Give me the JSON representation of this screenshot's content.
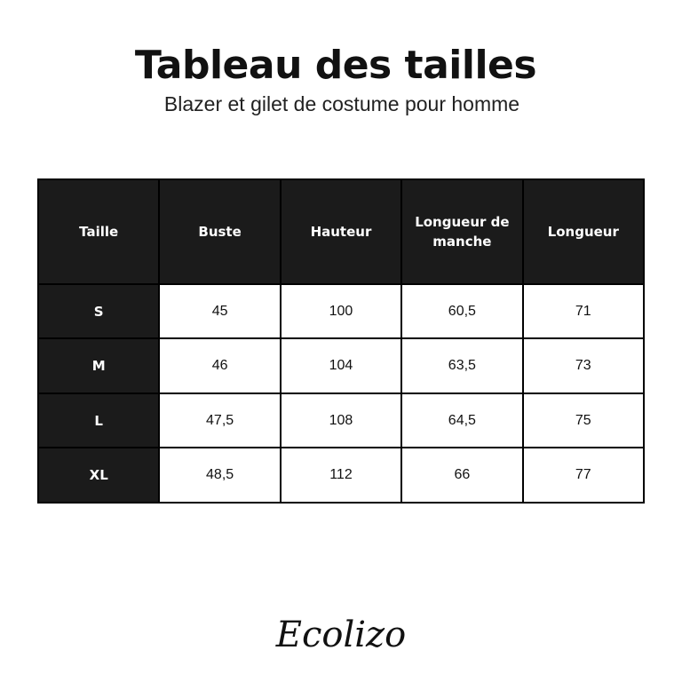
{
  "title": "Tableau des tailles",
  "subtitle": "Blazer et gilet de costume pour homme",
  "table": {
    "headers": [
      "Taille",
      "Buste",
      "Hauteur",
      "Longueur de manche",
      "Longueur"
    ],
    "rows": [
      [
        "S",
        "45",
        "100",
        "60,5",
        "71"
      ],
      [
        "M",
        "46",
        "104",
        "63,5",
        "73"
      ],
      [
        "L",
        "47,5",
        "108",
        "64,5",
        "75"
      ],
      [
        "XL",
        "48,5",
        "112",
        "66",
        "77"
      ]
    ]
  },
  "logo": "Ecolizo",
  "colors": {
    "header_bg": "#1b1b1b",
    "header_text": "#ffffff"
  }
}
